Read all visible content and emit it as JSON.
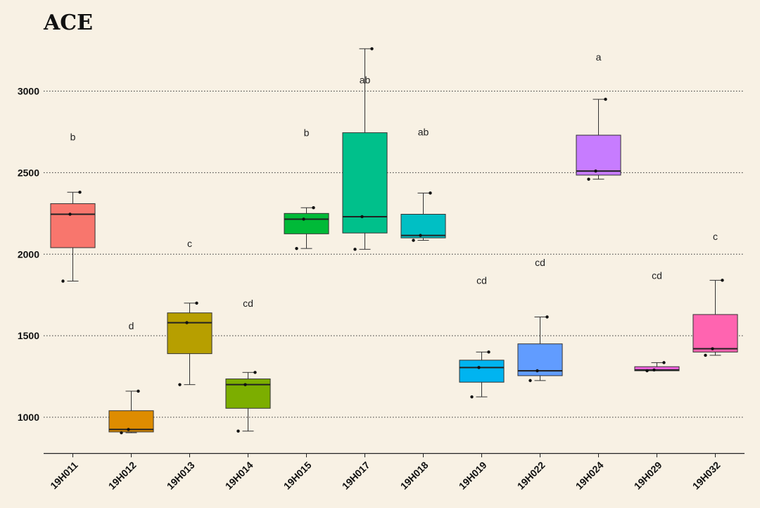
{
  "chart_data": {
    "type": "boxplot",
    "title": "ACE",
    "xlabel": "",
    "ylabel": "",
    "ylim": [
      780,
      3300
    ],
    "yticks": [
      1000,
      1500,
      2000,
      2500,
      3000
    ],
    "grid": "horizontal-dotted",
    "legend": "none",
    "categories": [
      "19H011",
      "19H012",
      "19H013",
      "19H014",
      "19H015",
      "19H017",
      "19H018",
      "19H019",
      "19H022",
      "19H024",
      "19H029",
      "19H032"
    ],
    "boxes": [
      {
        "name": "19H011",
        "color": "#f8766d",
        "whisker_low": 1835,
        "q1": 2040,
        "median": 2245,
        "q3": 2310,
        "whisker_high": 2380,
        "points": [
          1835,
          2245,
          2380
        ],
        "letter": "b",
        "letter_y": 2720
      },
      {
        "name": "19H012",
        "color": "#de8c00",
        "whisker_low": 905,
        "q1": 910,
        "median": 925,
        "q3": 1040,
        "whisker_high": 1160,
        "points": [
          905,
          925,
          1160
        ],
        "letter": "d",
        "letter_y": 1560
      },
      {
        "name": "19H013",
        "color": "#b79f00",
        "whisker_low": 1200,
        "q1": 1390,
        "median": 1580,
        "q3": 1640,
        "whisker_high": 1700,
        "points": [
          1200,
          1580,
          1700
        ],
        "letter": "c",
        "letter_y": 2065
      },
      {
        "name": "19H014",
        "color": "#7cae00",
        "whisker_low": 915,
        "q1": 1055,
        "median": 1200,
        "q3": 1235,
        "whisker_high": 1275,
        "points": [
          915,
          1200,
          1275
        ],
        "letter": "cd",
        "letter_y": 1700
      },
      {
        "name": "19H015",
        "color": "#00ba38",
        "whisker_low": 2035,
        "q1": 2125,
        "median": 2215,
        "q3": 2250,
        "whisker_high": 2285,
        "points": [
          2035,
          2215,
          2285
        ],
        "letter": "b",
        "letter_y": 2745
      },
      {
        "name": "19H017",
        "color": "#00c08b",
        "whisker_low": 2030,
        "q1": 2130,
        "median": 2230,
        "q3": 2745,
        "whisker_high": 3260,
        "points": [
          2030,
          2230,
          3260
        ],
        "letter": "ab",
        "letter_y": 3070
      },
      {
        "name": "19H018",
        "color": "#00bfc4",
        "whisker_low": 2085,
        "q1": 2100,
        "median": 2115,
        "q3": 2245,
        "whisker_high": 2375,
        "points": [
          2085,
          2115,
          2375
        ],
        "letter": "ab",
        "letter_y": 2750
      },
      {
        "name": "19H019",
        "color": "#00b4f0",
        "whisker_low": 1125,
        "q1": 1215,
        "median": 1305,
        "q3": 1350,
        "whisker_high": 1400,
        "points": [
          1125,
          1305,
          1400
        ],
        "letter": "cd",
        "letter_y": 1840
      },
      {
        "name": "19H022",
        "color": "#619cff",
        "whisker_low": 1225,
        "q1": 1255,
        "median": 1285,
        "q3": 1450,
        "whisker_high": 1615,
        "points": [
          1225,
          1285,
          1615
        ],
        "letter": "cd",
        "letter_y": 1950
      },
      {
        "name": "19H024",
        "color": "#c77cff",
        "whisker_low": 2460,
        "q1": 2485,
        "median": 2510,
        "q3": 2730,
        "whisker_high": 2950,
        "points": [
          2460,
          2510,
          2950
        ],
        "letter": "a",
        "letter_y": 3210
      },
      {
        "name": "19H029",
        "color": "#f564e3",
        "whisker_low": 1285,
        "q1": 1285,
        "median": 1290,
        "q3": 1310,
        "whisker_high": 1335,
        "points": [
          1285,
          1290,
          1335
        ],
        "letter": "cd",
        "letter_y": 1870
      },
      {
        "name": "19H032",
        "color": "#ff64b0",
        "whisker_low": 1380,
        "q1": 1400,
        "median": 1420,
        "q3": 1630,
        "whisker_high": 1840,
        "points": [
          1380,
          1420,
          1840
        ],
        "letter": "c",
        "letter_y": 2110
      }
    ]
  }
}
